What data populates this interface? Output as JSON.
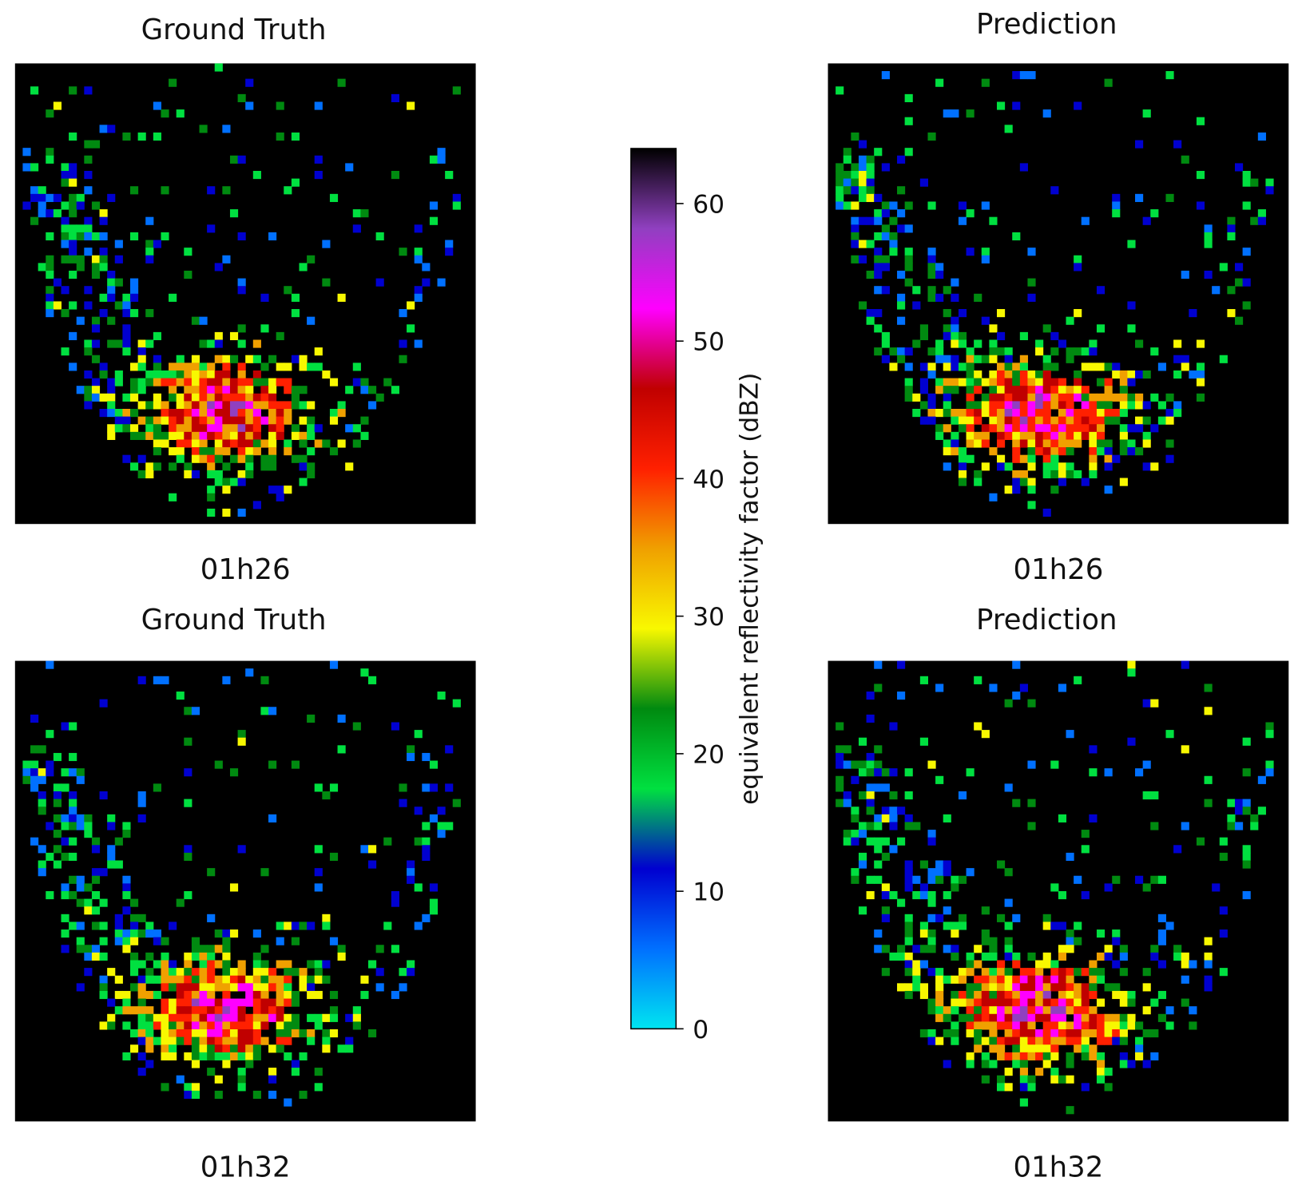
{
  "chart_data": {
    "type": "heatmap",
    "panels": [
      {
        "title": "Ground Truth",
        "time": "01h26"
      },
      {
        "title": "Prediction",
        "time": "01h26"
      },
      {
        "title": "Ground Truth",
        "time": "01h32"
      },
      {
        "title": "Prediction",
        "time": "01h32"
      }
    ],
    "colorbar": {
      "label": "equivalent reflectivity factor (dBZ)",
      "lim": [
        0,
        64
      ],
      "ticks": [
        0,
        10,
        20,
        30,
        40,
        50,
        60
      ],
      "colors": [
        "#00e5f0",
        "#0070ff",
        "#0000d0",
        "#00e040",
        "#008a10",
        "#f8f800",
        "#f0a000",
        "#ff2000",
        "#c00000",
        "#ff00ff",
        "#9040c0",
        "#000000"
      ]
    }
  }
}
